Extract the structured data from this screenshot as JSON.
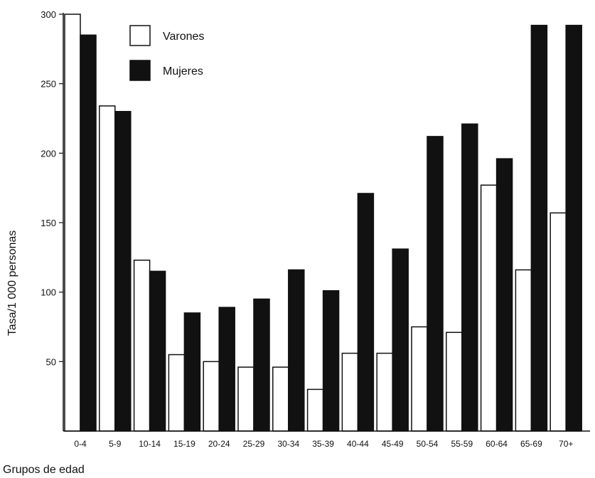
{
  "chart_data": {
    "type": "bar",
    "xlabel": "Grupos de edad",
    "ylabel": "Tasa/1 000 personas",
    "ylim": [
      0,
      300
    ],
    "yticks": [
      50,
      100,
      150,
      200,
      250,
      300
    ],
    "grid": false,
    "legend_position": "top-left",
    "categories": [
      "0-4",
      "5-9",
      "10-14",
      "15-19",
      "20-24",
      "25-29",
      "30-34",
      "35-39",
      "40-44",
      "45-49",
      "50-54",
      "55-59",
      "60-64",
      "65-69",
      "70+"
    ],
    "series": [
      {
        "name": "Varones",
        "fill": "#ffffff",
        "stroke": "#111111",
        "values": [
          300,
          234,
          123,
          55,
          50,
          46,
          46,
          30,
          56,
          56,
          75,
          71,
          177,
          116,
          157
        ]
      },
      {
        "name": "Mujeres",
        "fill": "#111111",
        "stroke": "#111111",
        "values": [
          285,
          230,
          115,
          85,
          89,
          95,
          116,
          101,
          171,
          131,
          212,
          221,
          196,
          292,
          292
        ]
      }
    ]
  }
}
